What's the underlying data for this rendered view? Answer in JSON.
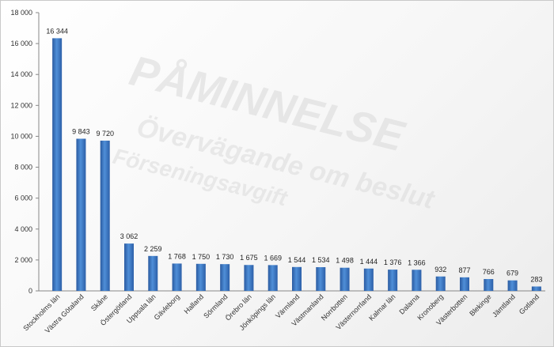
{
  "watermark": {
    "line1": "PÅMINNELSE",
    "line2": "Övervägande om beslut",
    "line3": "Förseningsavgift"
  },
  "chart_data": {
    "type": "bar",
    "title": "",
    "xlabel": "",
    "ylabel": "",
    "ylim": [
      0,
      18000
    ],
    "yticks": [
      "0",
      "2 000",
      "4 000",
      "6 000",
      "8 000",
      "10 000",
      "12 000",
      "14 000",
      "16 000",
      "18 000"
    ],
    "grid": false,
    "legend": "none",
    "bar_color": "#3d78c6",
    "categories": [
      "Stockholms län",
      "Västra Götaland",
      "Skåne",
      "Östergötland",
      "Uppsala län",
      "Gävleborg",
      "Halland",
      "Sörmland",
      "Örebro län",
      "Jönköpings län",
      "Värmland",
      "Västmanland",
      "Norrbotten",
      "Västernorrland",
      "Kalmar län",
      "Dalarna",
      "Kronoberg",
      "Västerbotten",
      "Blekinge",
      "Jämtland",
      "Gotland"
    ],
    "values": [
      16344,
      9843,
      9720,
      3062,
      2259,
      1768,
      1750,
      1730,
      1675,
      1669,
      1544,
      1534,
      1498,
      1444,
      1376,
      1366,
      932,
      877,
      766,
      679,
      283
    ],
    "value_labels": [
      "16 344",
      "9 843",
      "9 720",
      "3 062",
      "2 259",
      "1 768",
      "1 750",
      "1 730",
      "1 675",
      "1 669",
      "1 544",
      "1 534",
      "1 498",
      "1 444",
      "1 376",
      "1 366",
      "932",
      "877",
      "766",
      "679",
      "283"
    ]
  }
}
